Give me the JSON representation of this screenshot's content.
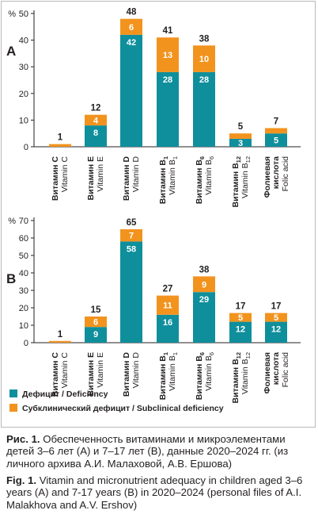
{
  "chart_data": [
    {
      "type": "bar",
      "stacked": true,
      "panel_label": "A",
      "ylabel": "%",
      "ylim": [
        0,
        50
      ],
      "yticks": [
        0,
        10,
        20,
        30,
        40,
        50
      ],
      "categories": [
        {
          "ru": "Витамин C",
          "en": "Vitamin C"
        },
        {
          "ru": "Витамин E",
          "en": "Vitamin E"
        },
        {
          "ru": "Витамин D",
          "en": "Vitamin D"
        },
        {
          "ru": "Витамин B1",
          "en": "Vitamin B1"
        },
        {
          "ru": "Витамин B6",
          "en": "Vitamin B6"
        },
        {
          "ru": "Витамин B12",
          "en": "Vitamin B12"
        },
        {
          "ru": "Фолиевая кислота",
          "en": "Folic acid"
        }
      ],
      "series": [
        {
          "name": "Дефицит / Deficiency",
          "values": [
            0,
            8,
            42,
            28,
            28,
            3,
            5
          ]
        },
        {
          "name": "Субклинический дефицит / Subclinical deficiency",
          "values": [
            1,
            4,
            6,
            13,
            10,
            2,
            2
          ]
        }
      ],
      "totals": [
        1,
        12,
        48,
        41,
        38,
        5,
        7
      ],
      "shown_segment_labels": {
        "deficiency": [
          "",
          "8",
          "42",
          "28",
          "28",
          "3",
          "5"
        ],
        "subclinical": [
          "",
          "4",
          "6",
          "13",
          "10",
          "",
          ""
        ]
      }
    },
    {
      "type": "bar",
      "stacked": true,
      "panel_label": "B",
      "ylabel": "%",
      "ylim": [
        0,
        70
      ],
      "yticks": [
        0,
        10,
        20,
        30,
        40,
        50,
        60,
        70
      ],
      "categories": [
        {
          "ru": "Витамин C",
          "en": "Vitamin C"
        },
        {
          "ru": "Витамин E",
          "en": "Vitamin E"
        },
        {
          "ru": "Витамин D",
          "en": "Vitamin D"
        },
        {
          "ru": "Витамин B1",
          "en": "Vitamin B1"
        },
        {
          "ru": "Витамин B6",
          "en": "Vitamin B6"
        },
        {
          "ru": "Витамин B12",
          "en": "Vitamin B12"
        },
        {
          "ru": "Фолиевая кислота",
          "en": "Folic acid"
        }
      ],
      "series": [
        {
          "name": "Дефицит / Deficiency",
          "values": [
            0,
            9,
            58,
            16,
            29,
            12,
            12
          ]
        },
        {
          "name": "Субклинический дефицит / Subclinical deficiency",
          "values": [
            1,
            6,
            7,
            11,
            9,
            5,
            5
          ]
        }
      ],
      "totals": [
        1,
        15,
        65,
        27,
        38,
        17,
        17
      ],
      "shown_segment_labels": {
        "deficiency": [
          "",
          "9",
          "58",
          "16",
          "29",
          "12",
          "12"
        ],
        "subclinical": [
          "",
          "6",
          "7",
          "11",
          "9",
          "5",
          "5"
        ]
      }
    }
  ],
  "legend": [
    {
      "label": "Дефицит / Deficiency",
      "color": "#0f8f9c"
    },
    {
      "label": "Субклинический дефицит / Subclinical deficiency",
      "color": "#f2931e"
    }
  ],
  "colors": {
    "deficiency": "#0f8f9c",
    "subclinical": "#f2931e",
    "axis": "#231f20"
  },
  "caption_ru": {
    "label": "Рис. 1.",
    "text": "Обеспеченность витаминами и микроэлементами детей 3–6 лет (А) и 7–17 лет (B), данные 2020–2024 гг. (из личного архива А.И. Малаховой, А.В. Ершова)"
  },
  "caption_en": {
    "label": "Fig. 1.",
    "text": "Vitamin and micronutrient adequacy in children aged 3–6 years (A) and 7-17 years (B) in 2020–2024 (personal files of A.I. Malakhova and A.V. Ershov)"
  }
}
